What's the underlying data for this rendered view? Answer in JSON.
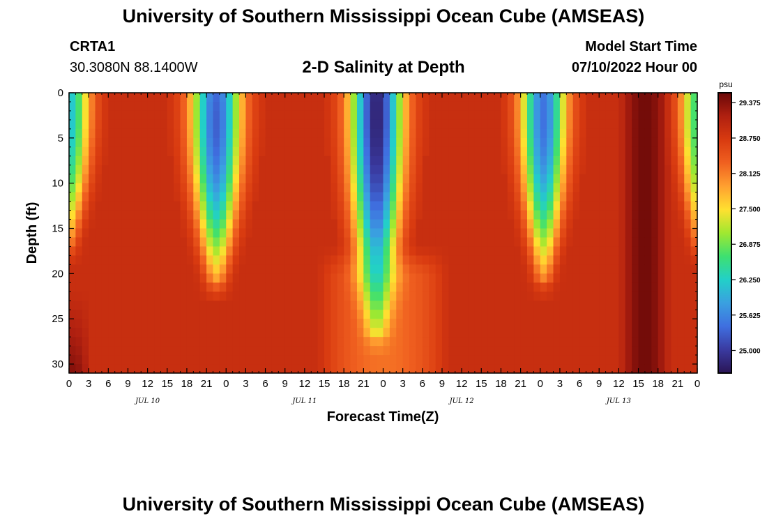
{
  "header": {
    "title": "University of Southern Mississippi Ocean Cube (AMSEAS)",
    "station": "CRTA1",
    "coords": "30.3080N  88.1400W",
    "subtitle": "2-D Salinity at Depth",
    "model_start_label": "Model Start Time",
    "model_start_value": "07/10/2022 Hour 00"
  },
  "footer": {
    "title": "University of Southern Mississippi Ocean Cube (AMSEAS)"
  },
  "chart_data": {
    "type": "heatmap",
    "title": "2-D Salinity at Depth",
    "xlabel": "Forecast Time(Z)",
    "ylabel": "Depth (ft)",
    "x_range_hours": [
      0,
      96
    ],
    "ylim": [
      31,
      0
    ],
    "x_ticks": [
      "0",
      "3",
      "6",
      "9",
      "12",
      "15",
      "18",
      "21",
      "0",
      "3",
      "6",
      "9",
      "12",
      "15",
      "18",
      "21",
      "0",
      "3",
      "6",
      "9",
      "12",
      "15",
      "18",
      "21",
      "0",
      "3",
      "6",
      "9",
      "12",
      "15",
      "18",
      "21",
      "0"
    ],
    "x_tick_hours": [
      0,
      3,
      6,
      9,
      12,
      15,
      18,
      21,
      24,
      27,
      30,
      33,
      36,
      39,
      42,
      45,
      48,
      51,
      54,
      57,
      60,
      63,
      66,
      69,
      72,
      75,
      78,
      81,
      84,
      87,
      90,
      93,
      96
    ],
    "y_ticks": [
      0,
      5,
      10,
      15,
      20,
      25,
      30
    ],
    "day_labels": [
      {
        "text": "JUL 10",
        "hour": 12
      },
      {
        "text": "JUL 11",
        "hour": 36
      },
      {
        "text": "JUL 12",
        "hour": 60
      },
      {
        "text": "JUL 13",
        "hour": 84
      }
    ],
    "colorbar": {
      "unit": "psu",
      "range": [
        24.6,
        29.55
      ],
      "ticks": [
        "29.375",
        "28.750",
        "28.125",
        "27.500",
        "26.875",
        "26.250",
        "25.625",
        "25.000"
      ],
      "tick_values": [
        29.375,
        28.75,
        28.125,
        27.5,
        26.875,
        26.25,
        25.625,
        25.0
      ],
      "colors": [
        "#2a1555",
        "#3a3aa0",
        "#3f6fe0",
        "#3aa0e0",
        "#22d0c8",
        "#3ee070",
        "#a0e830",
        "#ffe030",
        "#ffa030",
        "#f06020",
        "#d83a10",
        "#b02010",
        "#6a0808"
      ]
    },
    "background_salinity": 28.9,
    "plumes": [
      {
        "center_hour": 0.0,
        "half_width_hours": 4.6,
        "bottom_depth_ft": 16.5,
        "min_salinity": 26.1,
        "core_depth_ft": 3
      },
      {
        "center_hour": 22.5,
        "half_width_hours": 5.5,
        "bottom_depth_ft": 20.5,
        "min_salinity": 25.3,
        "core_depth_ft": 4
      },
      {
        "center_hour": 47.0,
        "half_width_hours": 5.8,
        "bottom_depth_ft": 26.0,
        "min_salinity": 24.75,
        "core_depth_ft": 3
      },
      {
        "center_hour": 72.5,
        "half_width_hours": 5.0,
        "bottom_depth_ft": 20.0,
        "min_salinity": 25.45,
        "core_depth_ft": 3
      },
      {
        "center_hour": 96.0,
        "half_width_hours": 3.8,
        "bottom_depth_ft": 16.5,
        "min_salinity": 26.6,
        "core_depth_ft": 3
      }
    ],
    "dark_bands": [
      {
        "center_hour": 88.0,
        "half_width_hours": 4.0,
        "salinity": 29.5
      },
      {
        "center_hour": 0.5,
        "half_width_hours": 3.0,
        "salinity": 29.4,
        "min_depth_ft": 22
      }
    ],
    "light_zones": [
      {
        "center_hour": 48.0,
        "half_width_hours": 10.0,
        "min_depth_ft": 17,
        "salinity": 28.2
      }
    ]
  }
}
